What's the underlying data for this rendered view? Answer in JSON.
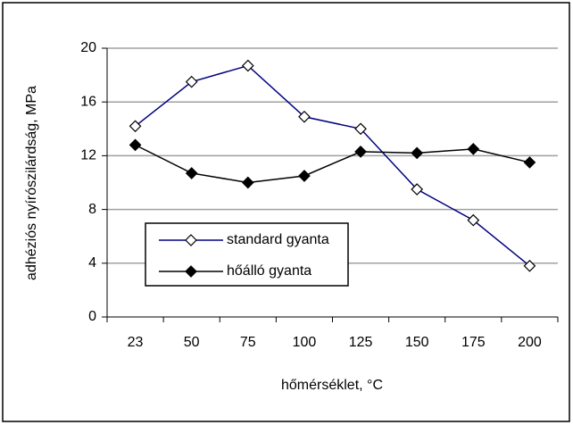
{
  "chart_data": {
    "type": "line",
    "xlabel": "hőmérséklet, °C",
    "ylabel": "adhéziós nyírószilárdság, MPa",
    "categories": [
      "23",
      "50",
      "75",
      "100",
      "125",
      "150",
      "175",
      "200"
    ],
    "series": [
      {
        "name": "standard gyanta",
        "color": "#000080",
        "marker_fill": "#ffffff",
        "values": [
          14.2,
          17.5,
          18.7,
          14.9,
          14.0,
          9.5,
          7.2,
          3.8
        ]
      },
      {
        "name": "hőálló gyanta",
        "color": "#000000",
        "marker_fill": "#000000",
        "values": [
          12.8,
          10.7,
          10.0,
          10.5,
          12.3,
          12.2,
          12.5,
          11.5
        ]
      }
    ],
    "ylim": [
      0,
      20
    ],
    "yticks": [
      0,
      4,
      8,
      12,
      16,
      20
    ],
    "grid": true
  }
}
